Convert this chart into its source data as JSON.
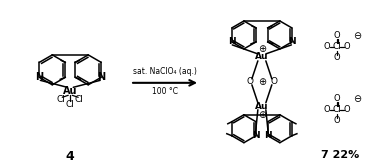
{
  "reactant_label": "4",
  "product_label": "7 22%",
  "arrow_text_top": "sat. NaClO₄ (aq.)",
  "arrow_text_bottom": "100 °C",
  "bg_color": "#ffffff",
  "line_color": "#000000",
  "fig_width": 3.8,
  "fig_height": 1.65,
  "dpi": 100
}
